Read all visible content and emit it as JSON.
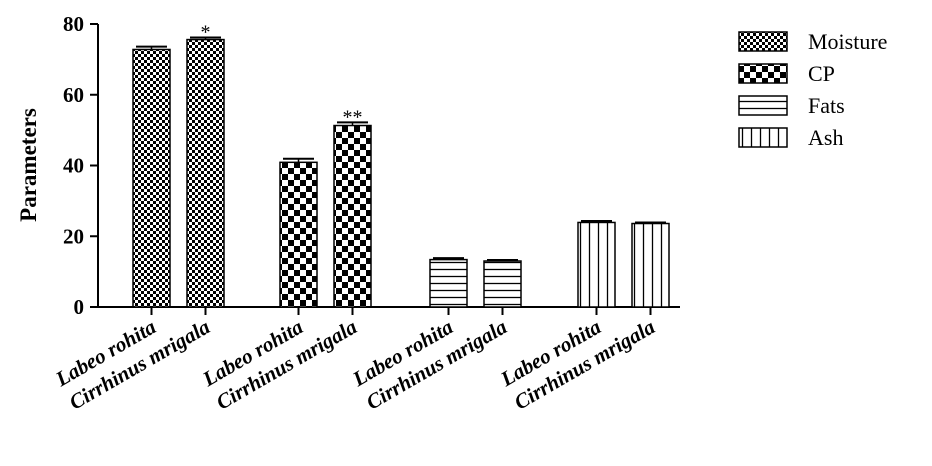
{
  "chart_data": {
    "type": "bar",
    "title": "",
    "xlabel": "",
    "ylabel": "Parameters",
    "ylim": [
      0,
      80
    ],
    "yticks": [
      0,
      20,
      40,
      60,
      80
    ],
    "grid": false,
    "legend_position": "top-right",
    "categories": [
      "Labeo rohita",
      "Cirrhinus mrigala"
    ],
    "series": [
      {
        "name": "Moisture",
        "pattern": "checker-fine",
        "values": [
          72.8,
          75.6
        ],
        "errors": [
          0.8,
          0.6
        ],
        "significance": [
          "",
          "*"
        ]
      },
      {
        "name": "CP",
        "pattern": "checker-coarse",
        "values": [
          40.9,
          51.3
        ],
        "errors": [
          1.0,
          0.9
        ],
        "significance": [
          "",
          "**"
        ]
      },
      {
        "name": "Fats",
        "pattern": "horizontal-lines",
        "values": [
          13.4,
          13.0
        ],
        "errors": [
          0.4,
          0.3
        ],
        "significance": [
          "",
          ""
        ]
      },
      {
        "name": "Ash",
        "pattern": "vertical-lines",
        "values": [
          23.9,
          23.6
        ],
        "errors": [
          0.4,
          0.3
        ],
        "significance": [
          "",
          ""
        ]
      }
    ]
  },
  "colors": {
    "ink": "#000000",
    "background": "#ffffff"
  }
}
